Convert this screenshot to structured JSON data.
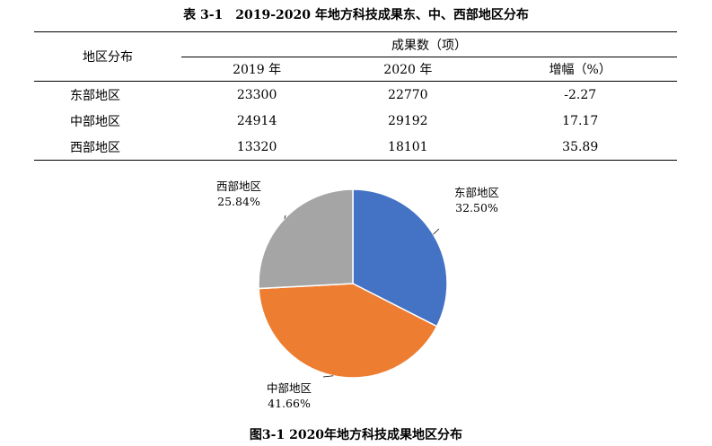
{
  "table": {
    "title": "表 3-1　2019-2020 年地方科技成果东、中、西部地区分布",
    "header_region": "地区分布",
    "header_group": "成果数（项）",
    "columns": [
      "2019 年",
      "2020 年",
      "增幅（%）"
    ],
    "rows": [
      {
        "region": "东部地区",
        "y2019": "23300",
        "y2020": "22770",
        "growth": "-2.27"
      },
      {
        "region": "中部地区",
        "y2019": "24914",
        "y2020": "29192",
        "growth": "17.17"
      },
      {
        "region": "西部地区",
        "y2019": "13320",
        "y2020": "18101",
        "growth": "35.89"
      }
    ]
  },
  "chart_data": {
    "type": "pie",
    "title": "图3-1  2020年地方科技成果地区分布",
    "slices": [
      {
        "label": "东部地区",
        "percent_label": "32.50%",
        "value": 32.5,
        "color": "#4472C4"
      },
      {
        "label": "中部地区",
        "percent_label": "41.66%",
        "value": 41.66,
        "color": "#ED7D31"
      },
      {
        "label": "西部地区",
        "percent_label": "25.84%",
        "value": 25.84,
        "color": "#A5A5A5"
      }
    ],
    "legend": "none"
  }
}
